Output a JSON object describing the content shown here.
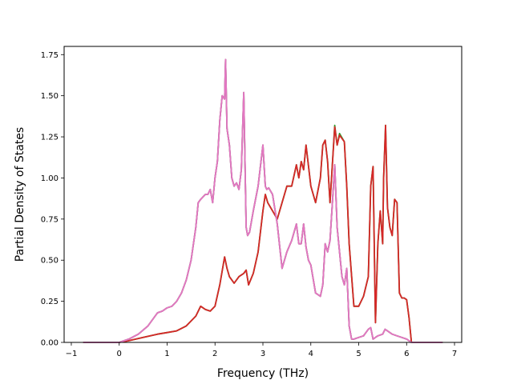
{
  "chart_data": {
    "type": "line",
    "title": "",
    "xlabel": "Frequency (THz)",
    "ylabel": "Partial Density of States",
    "xlim": [
      -1.15,
      7.15
    ],
    "ylim": [
      0,
      1.8
    ],
    "xticks": [
      -1,
      0,
      1,
      2,
      3,
      4,
      5,
      6,
      7
    ],
    "xtick_labels": [
      "−1",
      "0",
      "1",
      "2",
      "3",
      "4",
      "5",
      "6",
      "7"
    ],
    "yticks": [
      0,
      0.25,
      0.5,
      0.75,
      1.0,
      1.25,
      1.5,
      1.75
    ],
    "ytick_labels": [
      "0.00",
      "0.25",
      "0.50",
      "0.75",
      "1.00",
      "1.25",
      "1.50",
      "1.75"
    ],
    "grid": false,
    "legend": "none",
    "series": [
      {
        "color": "#2ca02c",
        "x": [
          -0.75,
          0.0,
          0.2,
          0.5,
          0.8,
          1.0,
          1.2,
          1.4,
          1.6,
          1.7,
          1.8,
          1.9,
          2.0,
          2.1,
          2.2,
          2.25,
          2.3,
          2.4,
          2.5,
          2.6,
          2.65,
          2.7,
          2.8,
          2.9,
          3.0,
          3.05,
          3.1,
          3.2,
          3.3,
          3.4,
          3.5,
          3.6,
          3.7,
          3.75,
          3.8,
          3.85,
          3.9,
          4.0,
          4.1,
          4.2,
          4.25,
          4.3,
          4.35,
          4.4,
          4.5,
          4.55,
          4.6,
          4.7,
          4.75,
          4.8,
          4.9,
          5.0,
          5.1,
          5.2,
          5.25,
          5.3,
          5.35,
          5.4,
          5.45,
          5.5,
          5.52,
          5.56,
          5.6,
          5.65,
          5.7,
          5.75,
          5.8,
          5.85,
          5.9,
          5.95,
          6.0,
          6.05,
          6.1,
          6.15,
          6.3,
          6.75
        ],
        "values": [
          0,
          0,
          0.01,
          0.03,
          0.05,
          0.06,
          0.07,
          0.1,
          0.16,
          0.22,
          0.2,
          0.19,
          0.22,
          0.35,
          0.52,
          0.45,
          0.4,
          0.36,
          0.4,
          0.42,
          0.44,
          0.35,
          0.42,
          0.55,
          0.8,
          0.9,
          0.85,
          0.8,
          0.75,
          0.85,
          0.95,
          0.95,
          1.08,
          1.0,
          1.1,
          1.05,
          1.2,
          0.95,
          0.85,
          1.0,
          1.2,
          1.23,
          1.1,
          0.85,
          1.32,
          1.2,
          1.27,
          1.22,
          0.95,
          0.6,
          0.22,
          0.22,
          0.28,
          0.4,
          0.95,
          1.07,
          0.12,
          0.6,
          0.8,
          0.6,
          1.0,
          1.32,
          0.82,
          0.7,
          0.65,
          0.87,
          0.85,
          0.3,
          0.27,
          0.27,
          0.26,
          0.15,
          0.0,
          0,
          0,
          0
        ]
      },
      {
        "color": "#d62728",
        "x": [
          -0.75,
          0.0,
          0.2,
          0.5,
          0.8,
          1.0,
          1.2,
          1.4,
          1.6,
          1.7,
          1.8,
          1.9,
          2.0,
          2.1,
          2.2,
          2.25,
          2.3,
          2.4,
          2.5,
          2.6,
          2.65,
          2.7,
          2.8,
          2.9,
          3.0,
          3.05,
          3.1,
          3.2,
          3.3,
          3.4,
          3.5,
          3.6,
          3.7,
          3.75,
          3.8,
          3.85,
          3.9,
          4.0,
          4.1,
          4.2,
          4.25,
          4.3,
          4.35,
          4.4,
          4.5,
          4.55,
          4.6,
          4.7,
          4.75,
          4.8,
          4.9,
          5.0,
          5.1,
          5.2,
          5.25,
          5.3,
          5.35,
          5.4,
          5.45,
          5.5,
          5.52,
          5.56,
          5.6,
          5.65,
          5.7,
          5.75,
          5.8,
          5.85,
          5.9,
          5.95,
          6.0,
          6.05,
          6.1,
          6.15,
          6.3,
          6.75
        ],
        "values": [
          0,
          0,
          0.01,
          0.03,
          0.05,
          0.06,
          0.07,
          0.1,
          0.16,
          0.22,
          0.2,
          0.19,
          0.22,
          0.35,
          0.52,
          0.45,
          0.4,
          0.36,
          0.4,
          0.42,
          0.44,
          0.35,
          0.42,
          0.55,
          0.8,
          0.9,
          0.85,
          0.8,
          0.75,
          0.85,
          0.95,
          0.95,
          1.08,
          1.0,
          1.1,
          1.05,
          1.2,
          0.95,
          0.85,
          1.0,
          1.2,
          1.23,
          1.1,
          0.85,
          1.31,
          1.2,
          1.26,
          1.22,
          0.95,
          0.6,
          0.22,
          0.22,
          0.28,
          0.4,
          0.95,
          1.07,
          0.12,
          0.6,
          0.8,
          0.6,
          1.0,
          1.32,
          0.82,
          0.7,
          0.65,
          0.87,
          0.85,
          0.3,
          0.27,
          0.27,
          0.26,
          0.15,
          0.0,
          0,
          0,
          0
        ]
      },
      {
        "color": "#8c564b",
        "x": [
          -0.75,
          0.0,
          0.2,
          0.4,
          0.6,
          0.8,
          0.9,
          1.0,
          1.1,
          1.2,
          1.3,
          1.4,
          1.5,
          1.6,
          1.65,
          1.7,
          1.8,
          1.85,
          1.9,
          1.95,
          2.0,
          2.05,
          2.1,
          2.15,
          2.2,
          2.22,
          2.25,
          2.3,
          2.35,
          2.4,
          2.45,
          2.5,
          2.55,
          2.6,
          2.65,
          2.68,
          2.72,
          2.8,
          2.9,
          3.0,
          3.05,
          3.08,
          3.12,
          3.2,
          3.3,
          3.4,
          3.5,
          3.6,
          3.7,
          3.75,
          3.8,
          3.85,
          3.9,
          3.95,
          4.0,
          4.1,
          4.2,
          4.25,
          4.3,
          4.35,
          4.4,
          4.45,
          4.5,
          4.55,
          4.6,
          4.65,
          4.7,
          4.75,
          4.8,
          4.85,
          4.9,
          5.0,
          5.1,
          5.2,
          5.25,
          5.3,
          5.35,
          5.4,
          5.5,
          5.55,
          5.6,
          5.7,
          5.8,
          5.9,
          6.0,
          6.05,
          6.1,
          6.15,
          6.3,
          6.75
        ],
        "values": [
          0,
          0,
          0.02,
          0.05,
          0.1,
          0.18,
          0.19,
          0.21,
          0.22,
          0.25,
          0.3,
          0.38,
          0.5,
          0.7,
          0.85,
          0.87,
          0.9,
          0.9,
          0.93,
          0.85,
          1.0,
          1.1,
          1.35,
          1.5,
          1.48,
          1.72,
          1.3,
          1.2,
          1.0,
          0.95,
          0.97,
          0.93,
          1.05,
          1.52,
          0.7,
          0.65,
          0.67,
          0.8,
          0.95,
          1.2,
          0.95,
          0.93,
          0.94,
          0.9,
          0.72,
          0.45,
          0.55,
          0.62,
          0.72,
          0.6,
          0.6,
          0.72,
          0.58,
          0.5,
          0.47,
          0.3,
          0.28,
          0.35,
          0.6,
          0.55,
          0.62,
          0.85,
          1.08,
          0.7,
          0.55,
          0.4,
          0.35,
          0.45,
          0.1,
          0.02,
          0.02,
          0.03,
          0.04,
          0.08,
          0.09,
          0.02,
          0.03,
          0.04,
          0.05,
          0.08,
          0.07,
          0.05,
          0.04,
          0.03,
          0.02,
          0.01,
          0.0,
          0,
          0,
          0
        ]
      },
      {
        "color": "#7f7f7f",
        "x": [
          -0.75,
          0.0,
          0.2,
          0.4,
          0.6,
          0.8,
          0.9,
          1.0,
          1.1,
          1.2,
          1.3,
          1.4,
          1.5,
          1.6,
          1.65,
          1.7,
          1.8,
          1.85,
          1.9,
          1.95,
          2.0,
          2.05,
          2.1,
          2.15,
          2.2,
          2.22,
          2.25,
          2.3,
          2.35,
          2.4,
          2.45,
          2.5,
          2.55,
          2.6,
          2.65,
          2.68,
          2.72,
          2.8,
          2.9,
          3.0,
          3.05,
          3.08,
          3.12,
          3.2,
          3.3,
          3.4,
          3.5,
          3.6,
          3.7,
          3.75,
          3.8,
          3.85,
          3.9,
          3.95,
          4.0,
          4.1,
          4.2,
          4.25,
          4.3,
          4.35,
          4.4,
          4.45,
          4.5,
          4.55,
          4.6,
          4.65,
          4.7,
          4.75,
          4.8,
          4.85,
          4.9,
          5.0,
          5.1,
          5.2,
          5.25,
          5.3,
          5.35,
          5.4,
          5.5,
          5.55,
          5.6,
          5.7,
          5.8,
          5.9,
          6.0,
          6.05,
          6.1,
          6.15,
          6.3,
          6.75
        ],
        "values": [
          0,
          0,
          0.02,
          0.05,
          0.1,
          0.18,
          0.19,
          0.21,
          0.22,
          0.25,
          0.3,
          0.38,
          0.5,
          0.7,
          0.85,
          0.87,
          0.9,
          0.9,
          0.93,
          0.85,
          1.0,
          1.1,
          1.35,
          1.5,
          1.48,
          1.72,
          1.3,
          1.2,
          1.0,
          0.95,
          0.97,
          0.93,
          1.05,
          1.52,
          0.7,
          0.65,
          0.67,
          0.8,
          0.95,
          1.2,
          0.95,
          0.93,
          0.94,
          0.9,
          0.72,
          0.45,
          0.55,
          0.62,
          0.72,
          0.6,
          0.6,
          0.72,
          0.58,
          0.5,
          0.47,
          0.3,
          0.28,
          0.35,
          0.6,
          0.55,
          0.62,
          0.85,
          1.08,
          0.7,
          0.55,
          0.4,
          0.35,
          0.45,
          0.1,
          0.02,
          0.02,
          0.03,
          0.04,
          0.08,
          0.09,
          0.02,
          0.03,
          0.04,
          0.05,
          0.08,
          0.07,
          0.05,
          0.04,
          0.03,
          0.02,
          0.01,
          0.0,
          0,
          0,
          0
        ]
      },
      {
        "color": "#e377c2",
        "x": [
          -0.75,
          0.0,
          0.2,
          0.4,
          0.6,
          0.8,
          0.9,
          1.0,
          1.1,
          1.2,
          1.3,
          1.4,
          1.5,
          1.6,
          1.65,
          1.7,
          1.8,
          1.85,
          1.9,
          1.95,
          2.0,
          2.05,
          2.1,
          2.15,
          2.2,
          2.22,
          2.25,
          2.3,
          2.35,
          2.4,
          2.45,
          2.5,
          2.55,
          2.6,
          2.65,
          2.68,
          2.72,
          2.8,
          2.9,
          3.0,
          3.05,
          3.08,
          3.12,
          3.2,
          3.3,
          3.4,
          3.5,
          3.6,
          3.7,
          3.75,
          3.8,
          3.85,
          3.9,
          3.95,
          4.0,
          4.1,
          4.2,
          4.25,
          4.3,
          4.35,
          4.4,
          4.45,
          4.5,
          4.55,
          4.6,
          4.65,
          4.7,
          4.75,
          4.8,
          4.85,
          4.9,
          5.0,
          5.1,
          5.2,
          5.25,
          5.3,
          5.35,
          5.4,
          5.5,
          5.55,
          5.6,
          5.7,
          5.8,
          5.9,
          6.0,
          6.05,
          6.1,
          6.15,
          6.3,
          6.75
        ],
        "values": [
          0,
          0,
          0.02,
          0.05,
          0.1,
          0.18,
          0.19,
          0.21,
          0.22,
          0.25,
          0.3,
          0.38,
          0.5,
          0.7,
          0.85,
          0.87,
          0.9,
          0.9,
          0.93,
          0.85,
          1.0,
          1.1,
          1.35,
          1.5,
          1.48,
          1.72,
          1.3,
          1.2,
          1.0,
          0.95,
          0.97,
          0.93,
          1.05,
          1.52,
          0.7,
          0.65,
          0.67,
          0.8,
          0.95,
          1.2,
          0.95,
          0.93,
          0.94,
          0.9,
          0.72,
          0.45,
          0.55,
          0.62,
          0.72,
          0.6,
          0.6,
          0.72,
          0.58,
          0.5,
          0.47,
          0.3,
          0.28,
          0.35,
          0.6,
          0.55,
          0.62,
          0.85,
          1.08,
          0.7,
          0.55,
          0.4,
          0.35,
          0.45,
          0.1,
          0.02,
          0.02,
          0.03,
          0.04,
          0.08,
          0.09,
          0.02,
          0.03,
          0.04,
          0.05,
          0.08,
          0.07,
          0.05,
          0.04,
          0.03,
          0.02,
          0.01,
          0.0,
          0,
          0,
          0
        ]
      }
    ]
  }
}
